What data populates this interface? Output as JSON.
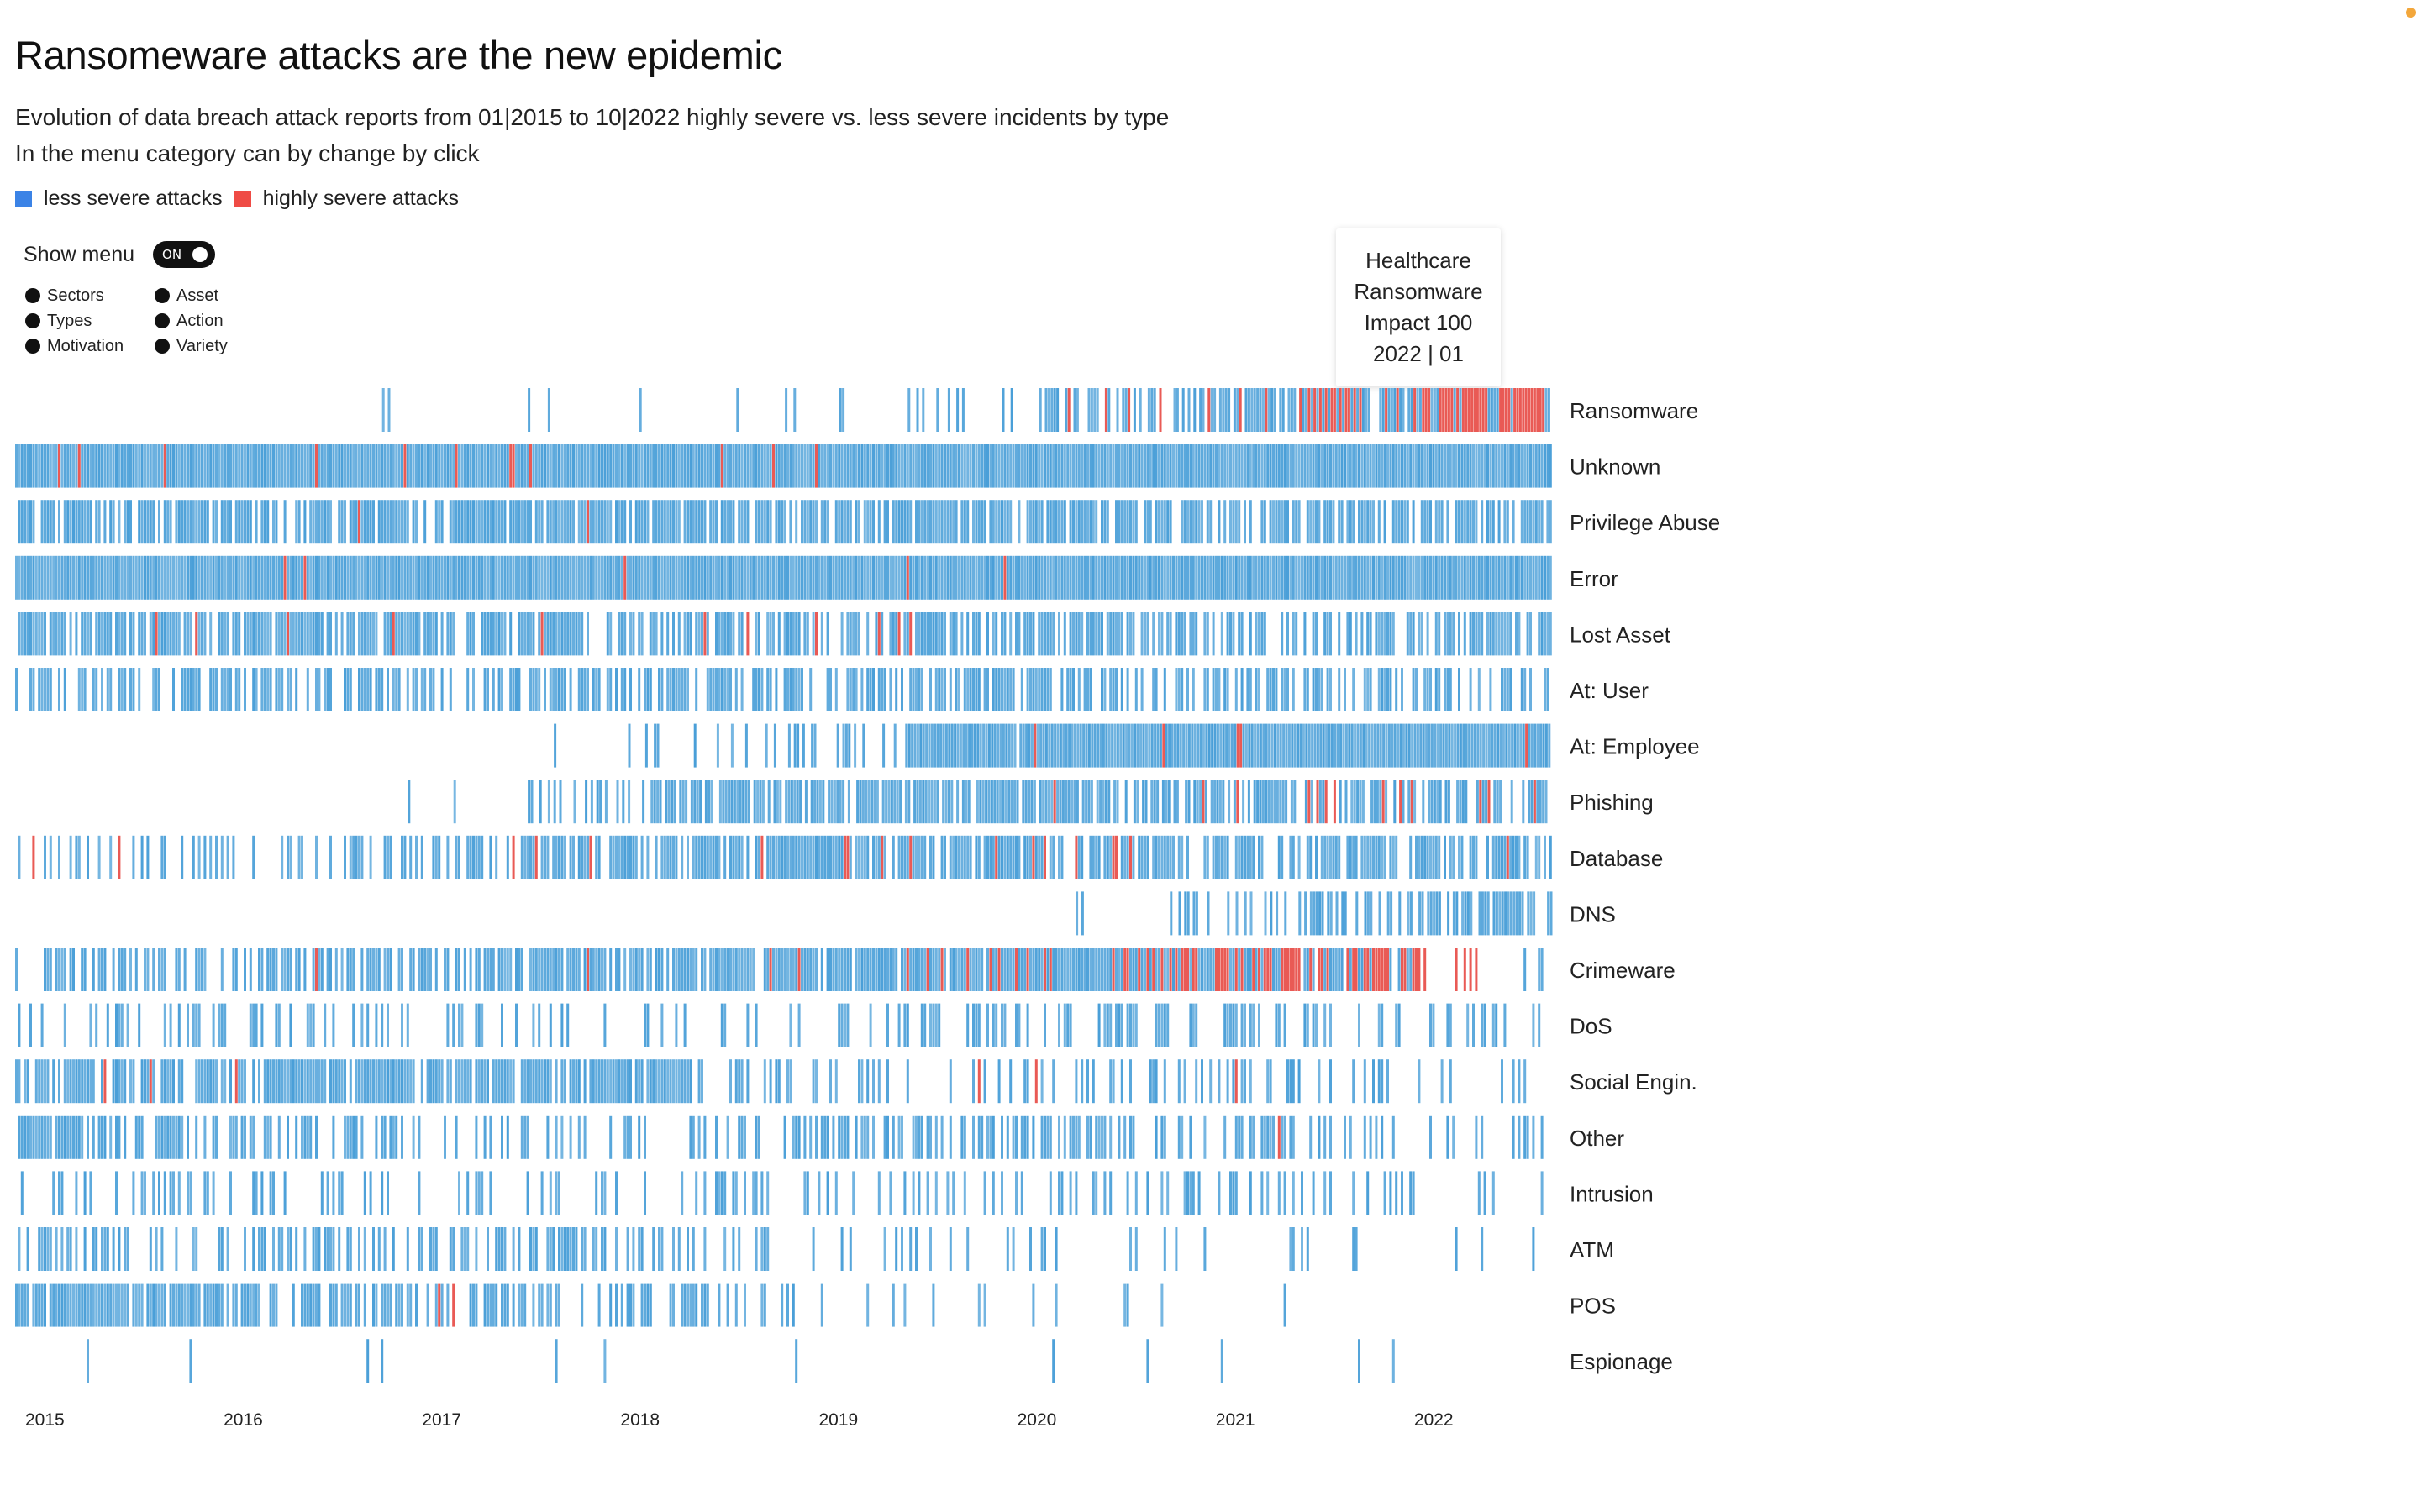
{
  "title": "Ransomeware attacks are the new epidemic",
  "subtitle": "Evolution of data breach attack reports from 01|2015 to 10|2022 highly severe vs. less severe incidents by type",
  "subtitle2": "In the menu category can by change by click",
  "legend": {
    "items": [
      {
        "label": "less severe attacks",
        "color": "#3b83e6"
      },
      {
        "label": "highly severe attacks",
        "color": "#ef4b45"
      }
    ]
  },
  "menu": {
    "label": "Show menu",
    "toggle_state": "ON",
    "options": [
      "Sectors",
      "Asset",
      "Types",
      "Action",
      "Motivation",
      "Variety"
    ]
  },
  "tooltip": {
    "lines": [
      "Healthcare",
      "Ransomware",
      "Impact 100",
      "2022 | 01"
    ]
  },
  "colors": {
    "less_severe_bar": "#4a9fd8",
    "highly_severe_bar": "#e8514c",
    "legend_blue": "#3b83e6",
    "legend_red": "#ef4b45"
  },
  "chart_data": {
    "type": "heatmap",
    "x_ticks": [
      "2015",
      "2016",
      "2017",
      "2018",
      "2019",
      "2020",
      "2021",
      "2022"
    ],
    "x_range": [
      "2015-01",
      "2022-10"
    ],
    "series": [
      {
        "name": "Ransomware",
        "start": 2016.0,
        "density": [
          0.0,
          0.0,
          0.03,
          0.01,
          0.06,
          0.06,
          0.12,
          0.25,
          0.55,
          0.8,
          0.92,
          0.97
        ],
        "severe": [
          0,
          0,
          0,
          0,
          0,
          0,
          0,
          0,
          0.05,
          0.2,
          0.45,
          0.65
        ]
      },
      {
        "name": "Unknown",
        "start": 2015.0,
        "density": [
          1,
          1,
          1,
          1,
          1,
          1,
          1,
          1,
          1,
          1,
          1,
          1
        ],
        "severe": [
          0.05,
          0.04,
          0.03,
          0.03,
          0.02,
          0.02,
          0.02,
          0.01,
          0.005,
          0,
          0,
          0
        ]
      },
      {
        "name": "Privilege Abuse",
        "start": 2015.0,
        "density": [
          0.8,
          0.8,
          0.8,
          0.8,
          0.85,
          0.85,
          0.85,
          0.85,
          0.8,
          0.75,
          0.75,
          0.7
        ],
        "severe": [
          0.02,
          0.02,
          0.02,
          0.01,
          0.01,
          0.01,
          0.01,
          0,
          0,
          0,
          0,
          0
        ]
      },
      {
        "name": "Error",
        "start": 2015.0,
        "density": [
          1,
          1,
          1,
          1,
          1,
          1,
          1,
          1,
          1,
          1,
          1,
          1
        ],
        "severe": [
          0.01,
          0.01,
          0.01,
          0.01,
          0.01,
          0.01,
          0.01,
          0.01,
          0,
          0,
          0,
          0
        ]
      },
      {
        "name": "Lost Asset",
        "start": 2015.0,
        "density": [
          0.9,
          0.85,
          0.8,
          0.75,
          0.75,
          0.75,
          0.7,
          0.7,
          0.65,
          0.6,
          0.55,
          0.55
        ],
        "severe": [
          0.03,
          0.03,
          0.02,
          0.02,
          0.02,
          0.02,
          0.02,
          0.02,
          0.02,
          0.02,
          0.01,
          0
        ]
      },
      {
        "name": "At: User",
        "start": 2015.0,
        "density": [
          0.6,
          0.6,
          0.5,
          0.5,
          0.6,
          0.6,
          0.65,
          0.7,
          0.65,
          0.65,
          0.6,
          0.55
        ],
        "severe": [
          0,
          0,
          0,
          0,
          0,
          0,
          0,
          0,
          0,
          0,
          0,
          0
        ]
      },
      {
        "name": "At: Employee",
        "start": 2017.6,
        "density": [
          0,
          0,
          0,
          0,
          0.05,
          0.1,
          0.4,
          0.95,
          1,
          1,
          1,
          1
        ],
        "severe": [
          0,
          0,
          0,
          0,
          0,
          0,
          0,
          0.02,
          0.03,
          0.02,
          0.02,
          0.01
        ]
      },
      {
        "name": "Phishing",
        "start": 2016.0,
        "density": [
          0,
          0,
          0.03,
          0.1,
          0.4,
          0.8,
          0.85,
          0.85,
          0.75,
          0.7,
          0.65,
          0.6
        ],
        "severe": [
          0,
          0,
          0,
          0,
          0,
          0.01,
          0.01,
          0.01,
          0.03,
          0.05,
          0.08,
          0.15
        ]
      },
      {
        "name": "Database",
        "start": 2015.0,
        "density": [
          0.3,
          0.35,
          0.45,
          0.5,
          0.6,
          0.7,
          0.8,
          0.8,
          0.75,
          0.7,
          0.65,
          0.6
        ],
        "severe": [
          0.06,
          0.06,
          0.08,
          0.08,
          0.07,
          0.06,
          0.05,
          0.04,
          0.03,
          0.02,
          0.01,
          0.01
        ]
      },
      {
        "name": "DNS",
        "start": 2020.1,
        "density": [
          0,
          0,
          0,
          0,
          0,
          0,
          0,
          0,
          0.1,
          0.3,
          0.5,
          0.6
        ],
        "severe": [
          0,
          0,
          0,
          0,
          0,
          0,
          0,
          0,
          0,
          0,
          0,
          0
        ]
      },
      {
        "name": "Crimeware",
        "start": 2015.0,
        "density": [
          0.45,
          0.5,
          0.55,
          0.6,
          0.75,
          0.8,
          0.85,
          0.9,
          1,
          1,
          0.95,
          0.2
        ],
        "severe": [
          0.01,
          0.01,
          0.01,
          0.02,
          0.03,
          0.05,
          0.08,
          0.12,
          0.25,
          0.4,
          0.5,
          0.6
        ]
      },
      {
        "name": "DoS",
        "start": 2015.0,
        "density": [
          0.3,
          0.3,
          0.3,
          0.25,
          0.2,
          0.2,
          0.25,
          0.35,
          0.4,
          0.4,
          0.35,
          0.3
        ],
        "severe": [
          0,
          0,
          0,
          0,
          0,
          0,
          0,
          0,
          0,
          0,
          0,
          0
        ]
      },
      {
        "name": "Social Engin.",
        "start": 2015.0,
        "density": [
          0.7,
          0.7,
          0.9,
          0.85,
          0.8,
          0.5,
          0.3,
          0.25,
          0.25,
          0.3,
          0.2,
          0.1
        ],
        "severe": [
          0.08,
          0.03,
          0.01,
          0.01,
          0.01,
          0.01,
          0.02,
          0.02,
          0.05,
          0.1,
          0.05,
          0
        ]
      },
      {
        "name": "Other",
        "start": 2015.0,
        "density": [
          0.6,
          0.55,
          0.4,
          0.35,
          0.3,
          0.35,
          0.45,
          0.55,
          0.5,
          0.4,
          0.3,
          0.2
        ],
        "severe": [
          0,
          0,
          0,
          0,
          0.01,
          0.02,
          0.02,
          0.03,
          0.03,
          0.02,
          0,
          0
        ]
      },
      {
        "name": "Intrusion",
        "start": 2015.0,
        "density": [
          0.35,
          0.3,
          0.25,
          0.2,
          0.25,
          0.3,
          0.3,
          0.25,
          0.25,
          0.2,
          0.15,
          0.1
        ],
        "severe": [
          0,
          0,
          0,
          0,
          0,
          0,
          0,
          0,
          0,
          0,
          0,
          0
        ]
      },
      {
        "name": "ATM",
        "start": 2015.0,
        "density": [
          0.4,
          0.35,
          0.4,
          0.45,
          0.3,
          0.2,
          0.15,
          0.15,
          0.1,
          0.1,
          0.1,
          0.1
        ],
        "severe": [
          0,
          0,
          0,
          0,
          0,
          0,
          0,
          0,
          0,
          0,
          0,
          0
        ]
      },
      {
        "name": "POS",
        "start": 2015.0,
        "density": [
          0.9,
          0.85,
          0.6,
          0.5,
          0.4,
          0.3,
          0.2,
          0.15,
          0.1,
          0.05,
          0.05,
          0
        ],
        "severe": [
          0.02,
          0.02,
          0.03,
          0.03,
          0.02,
          0.01,
          0,
          0,
          0,
          0,
          0,
          0
        ]
      },
      {
        "name": "Espionage",
        "start": 2015.0,
        "density": [
          0.05,
          0.03,
          0.03,
          0.02,
          0.02,
          0.02,
          0.02,
          0.02,
          0.08,
          0.02,
          0.01,
          0
        ],
        "severe": [
          0.3,
          0,
          0,
          0,
          0,
          0,
          0,
          0,
          0,
          0,
          0,
          0
        ]
      }
    ]
  }
}
